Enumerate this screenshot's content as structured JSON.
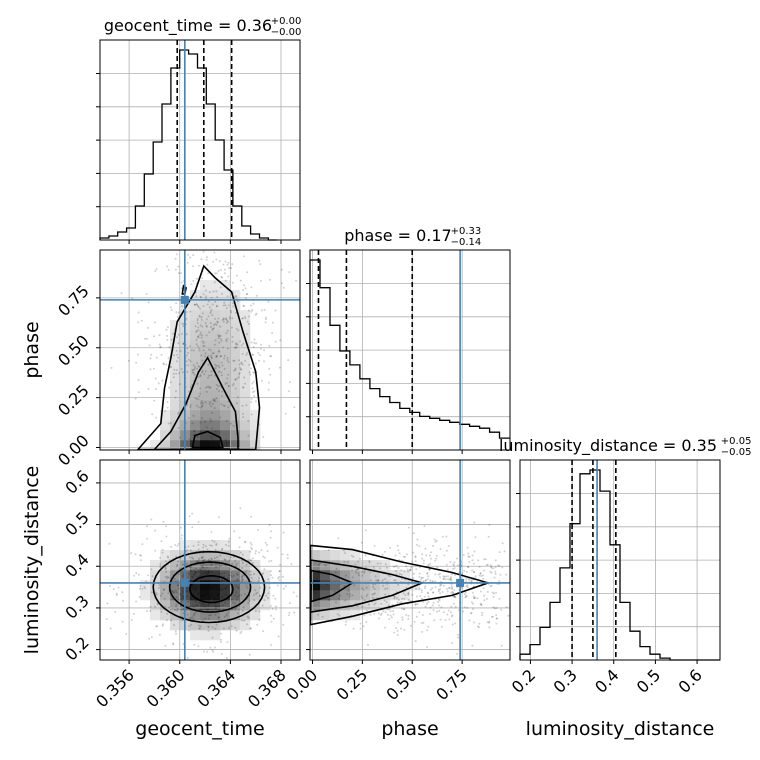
{
  "chart_data": {
    "type": "corner",
    "parameters": [
      "geocent_time",
      "phase",
      "luminosity_distance"
    ],
    "titles": [
      {
        "param": "geocent_time",
        "text": "geocent_time = 0.36",
        "upper": "+0.00",
        "lower": "−0.00"
      },
      {
        "param": "phase",
        "text": "phase = 0.17",
        "upper": "+0.33",
        "lower": "−0.14"
      },
      {
        "param": "luminosity_distance",
        "text": "luminosity_distance = 0.35",
        "upper": "+0.05",
        "lower": "−0.05"
      }
    ],
    "axis_labels": {
      "x": [
        "geocent_time",
        "phase",
        "luminosity_distance"
      ],
      "y": [
        "phase",
        "luminosity_distance"
      ]
    },
    "ranges": {
      "geocent_time": [
        0.3537,
        0.3695
      ],
      "phase": [
        -0.0125,
        0.99
      ],
      "luminosity_distance": [
        0.175,
        0.655
      ]
    },
    "ticks": {
      "geocent_time": [
        "0.356",
        "0.360",
        "0.364",
        "0.368"
      ],
      "phase": [
        "0.00",
        "0.25",
        "0.50",
        "0.75"
      ],
      "luminosity_distance_x": [
        "0.2",
        "0.3",
        "0.4",
        "0.5",
        "0.6"
      ],
      "luminosity_distance_y": [
        "0.2",
        "0.3",
        "0.4",
        "0.5",
        "0.6"
      ]
    },
    "truths": {
      "geocent_time": 0.3604,
      "phase": 0.74,
      "luminosity_distance": 0.36
    },
    "quantiles": {
      "geocent_time": [
        0.3598,
        0.3619,
        0.3641
      ],
      "phase": [
        0.03,
        0.17,
        0.5
      ],
      "luminosity_distance": [
        0.3,
        0.35,
        0.405
      ]
    },
    "hist_1d": {
      "geocent_time": {
        "start": 0.3537,
        "step": 0.0007,
        "counts": [
          1,
          2,
          4,
          6,
          17,
          33,
          49,
          68,
          86,
          95,
          93,
          86,
          68,
          50,
          35,
          17,
          7,
          3,
          1,
          0
        ]
      },
      "phase": {
        "start": -0.0125,
        "step": 0.05,
        "counts": [
          96,
          82,
          63,
          50,
          43,
          36,
          31,
          27,
          24,
          21,
          19,
          17,
          16,
          15,
          14,
          13,
          12,
          11,
          9,
          6
        ]
      },
      "luminosity_distance": {
        "start": 0.175,
        "step": 0.024,
        "counts": [
          3,
          8,
          17,
          30,
          48,
          71,
          97,
          99,
          88,
          60,
          30,
          15,
          7,
          3,
          1,
          0,
          0,
          0,
          0,
          0
        ]
      }
    },
    "grid": true
  }
}
